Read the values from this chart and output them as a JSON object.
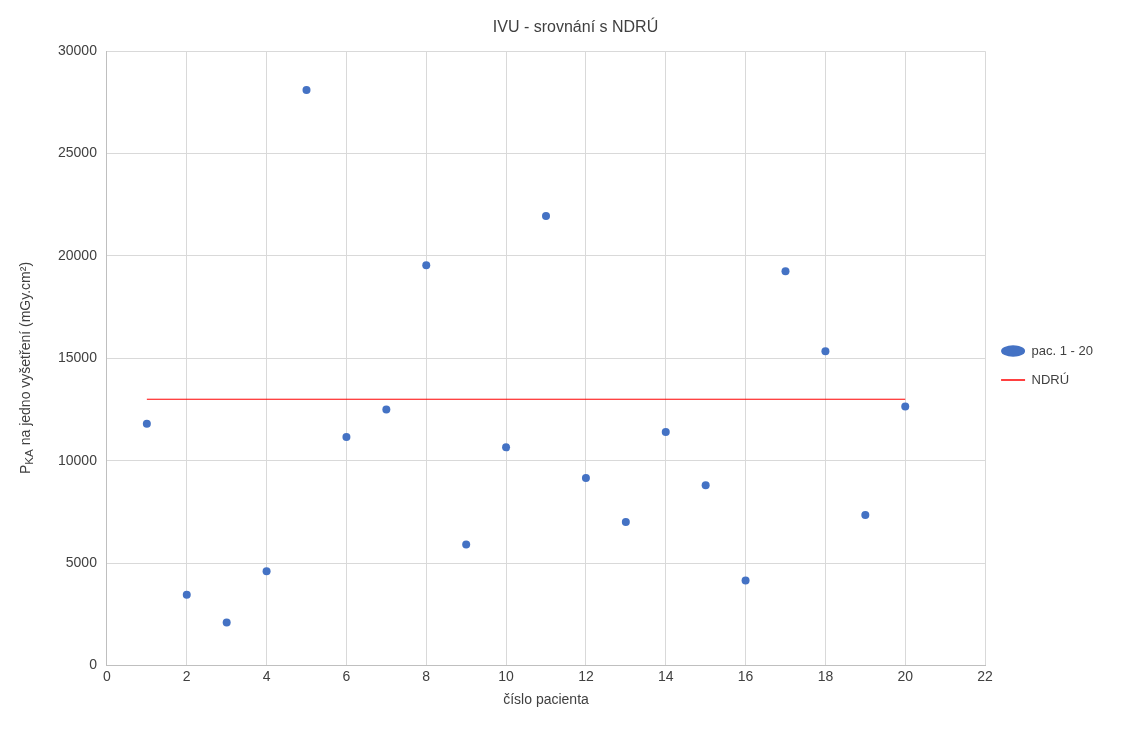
{
  "chart_data": {
    "type": "scatter",
    "title": "IVU - srovnání s NDRÚ",
    "xlabel": "číslo pacienta",
    "ylabel": "P$_{KA}$ na jedno vyšetření (mGy.cm²)",
    "x": [
      1,
      2,
      3,
      4,
      5,
      6,
      7,
      8,
      9,
      10,
      11,
      12,
      13,
      14,
      15,
      16,
      17,
      18,
      19,
      20
    ],
    "series": [
      {
        "name": "pac. 1 - 20",
        "color": "#4472c4",
        "marker": "circle",
        "values": [
          11800,
          3450,
          2100,
          4600,
          28100,
          11150,
          12500,
          19550,
          5900,
          10650,
          21950,
          9150,
          7000,
          11400,
          8800,
          4150,
          19250,
          15350,
          7350,
          12650
        ]
      },
      {
        "name": "NDRÚ",
        "type": "line",
        "color": "#ff0000",
        "marker": "none",
        "line_style": "solid",
        "x": [
          1,
          20
        ],
        "values": [
          13000,
          13000
        ]
      }
    ],
    "xlim": [
      0,
      22
    ],
    "xticks": [
      0,
      2,
      4,
      6,
      8,
      10,
      12,
      14,
      16,
      18,
      20,
      22
    ],
    "ylim": [
      0,
      30000
    ],
    "yticks": [
      0,
      5000,
      10000,
      15000,
      20000,
      25000,
      30000
    ],
    "grid": true,
    "legend": "right"
  }
}
